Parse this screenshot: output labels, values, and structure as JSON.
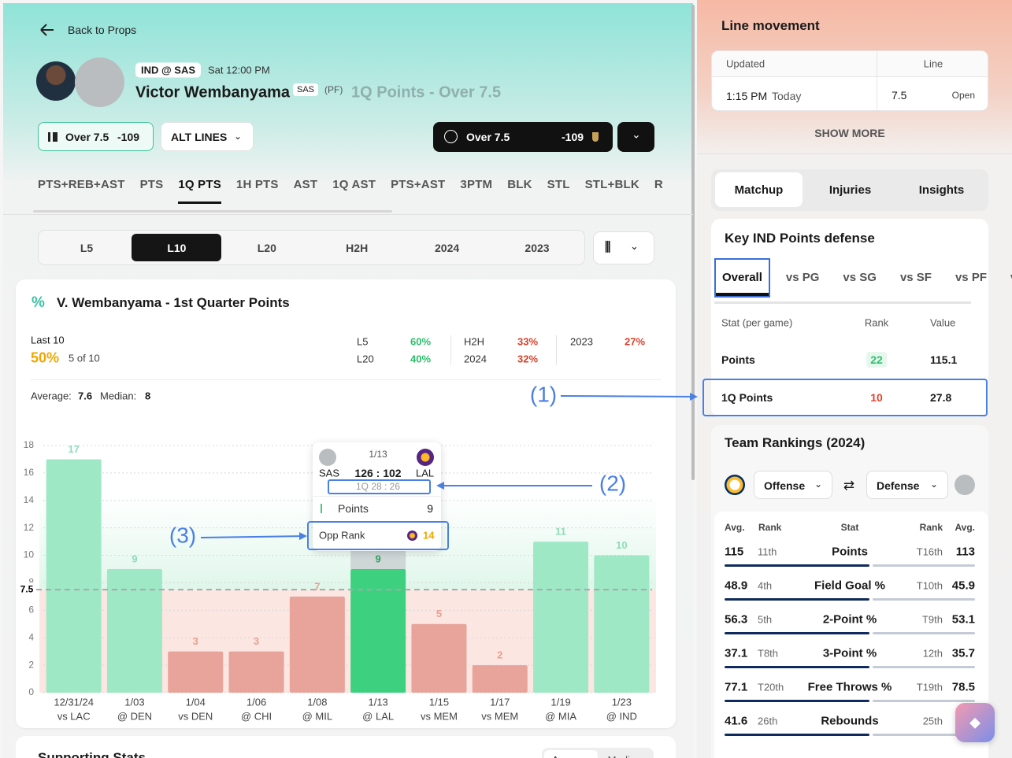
{
  "nav": {
    "back": "Back to Props"
  },
  "header": {
    "game": "IND @ SAS",
    "time": "Sat 12:00 PM",
    "player": "Victor Wembanyama",
    "team": "SAS",
    "position": "(PF)",
    "prop": "1Q Points - Over 7.5"
  },
  "actions": {
    "pick": {
      "label": "Over 7.5",
      "odds": "-109"
    },
    "alt_lines": "ALT LINES",
    "bet": {
      "label": "Over 7.5",
      "odds": "-109"
    }
  },
  "stat_tabs": [
    {
      "label": "PTS+REB+AST"
    },
    {
      "label": "PTS"
    },
    {
      "label": "1Q PTS",
      "active": true
    },
    {
      "label": "1H PTS"
    },
    {
      "label": "AST"
    },
    {
      "label": "1Q AST"
    },
    {
      "label": "PTS+AST"
    },
    {
      "label": "3PTM"
    },
    {
      "label": "BLK"
    },
    {
      "label": "STL"
    },
    {
      "label": "STL+BLK"
    },
    {
      "label": "R"
    }
  ],
  "range_tabs": [
    {
      "label": "L5"
    },
    {
      "label": "L10",
      "active": true
    },
    {
      "label": "L20"
    },
    {
      "label": "H2H"
    },
    {
      "label": "2024"
    },
    {
      "label": "2023"
    }
  ],
  "summary": {
    "title": "V. Wembanyama - 1st Quarter Points",
    "period": "Last 10",
    "hit_rate": "50%",
    "hits": "5 of 10",
    "splits": [
      {
        "label": "L5",
        "value": "60%",
        "color": "#2dbf6c"
      },
      {
        "label": "L20",
        "value": "40%",
        "color": "#2dbf6c"
      },
      {
        "label": "H2H",
        "value": "33%",
        "color": "#d9412b"
      },
      {
        "label": "2024",
        "value": "32%",
        "color": "#d9412b"
      },
      {
        "label": "2023",
        "value": "27%",
        "color": "#d9412b"
      }
    ],
    "average_label": "Average:",
    "average": 7.6,
    "median_label": "Median:",
    "median": 8
  },
  "chart_data": {
    "type": "bar",
    "categories": [
      "12/31/24",
      "1/03",
      "1/04",
      "1/06",
      "1/08",
      "1/13",
      "1/15",
      "1/17",
      "1/19",
      "1/23"
    ],
    "opponents": [
      "vs LAC",
      "@ DEN",
      "vs DEN",
      "@ CHI",
      "@ MIL",
      "@ LAL",
      "vs MEM",
      "vs MEM",
      "@ MIA",
      "@ IND"
    ],
    "values": [
      17,
      9,
      3,
      3,
      7,
      9,
      5,
      2,
      11,
      10
    ],
    "line": 7.5,
    "selected": "1/13",
    "colors": {
      "over": "#9ee8c6",
      "under": "#e8a49a",
      "selected": "#3dd07f"
    },
    "ylim": [
      0,
      18
    ],
    "yticks": [
      0,
      2,
      4,
      6,
      8,
      10,
      12,
      14,
      16,
      18
    ],
    "grid": true
  },
  "tooltip": {
    "date": "1/13",
    "home": "SAS",
    "score": "126 : 102",
    "away": "LAL",
    "quarter": "1Q 28 : 26",
    "stat_label": "Points",
    "stat_value": 9,
    "rank_label": "Opp Rank",
    "rank": 14
  },
  "annotations": [
    "(1)",
    "(2)",
    "(3)"
  ],
  "supporting": {
    "title": "Supporting Stats",
    "toggle": [
      "Average",
      "Median"
    ]
  },
  "line_movement": {
    "title": "Line movement",
    "headers": [
      "Updated",
      "Line"
    ],
    "row": {
      "time": "1:15 PM",
      "day": "Today",
      "line": 7.5,
      "status": "Open"
    },
    "more": "SHOW MORE"
  },
  "panel_tabs": [
    {
      "label": "Matchup",
      "active": true
    },
    {
      "label": "Injuries"
    },
    {
      "label": "Insights"
    }
  ],
  "defense": {
    "title": "Key IND Points defense",
    "tabs": [
      {
        "label": "Overall",
        "active": true
      },
      {
        "label": "vs PG"
      },
      {
        "label": "vs SG"
      },
      {
        "label": "vs SF"
      },
      {
        "label": "vs PF"
      },
      {
        "label": "vs C"
      }
    ],
    "headers": [
      "Stat (per game)",
      "Rank",
      "Value"
    ],
    "rows": [
      {
        "stat": "Points",
        "rank": 22,
        "value": 115.1,
        "rank_color": "#2dbf6c"
      },
      {
        "stat": "1Q Points",
        "rank": 10,
        "value": 27.8,
        "rank_color": "#e0452d"
      }
    ]
  },
  "rankings": {
    "title": "Team Rankings (2024)",
    "left": "Offense",
    "right": "Defense",
    "headers": [
      "Avg.",
      "Rank",
      "Stat",
      "Rank",
      "Avg."
    ],
    "rows": [
      {
        "avg_left": 115,
        "rank_left": "11th",
        "stat": "Points",
        "rank_right": "T16th",
        "avg_right": 113
      },
      {
        "avg_left": 48.9,
        "rank_left": "4th",
        "stat": "Field Goal %",
        "rank_right": "T10th",
        "avg_right": 45.9
      },
      {
        "avg_left": 56.3,
        "rank_left": "5th",
        "stat": "2-Point %",
        "rank_right": "T9th",
        "avg_right": 53.1
      },
      {
        "avg_left": 37.1,
        "rank_left": "T8th",
        "stat": "3-Point %",
        "rank_right": "12th",
        "avg_right": 35.7
      },
      {
        "avg_left": 77.1,
        "rank_left": "T20th",
        "stat": "Free Throws %",
        "rank_right": "T19th",
        "avg_right": 78.5
      },
      {
        "avg_left": 41.6,
        "rank_left": "26th",
        "stat": "Rebounds",
        "rank_right": "25th"
      }
    ]
  }
}
